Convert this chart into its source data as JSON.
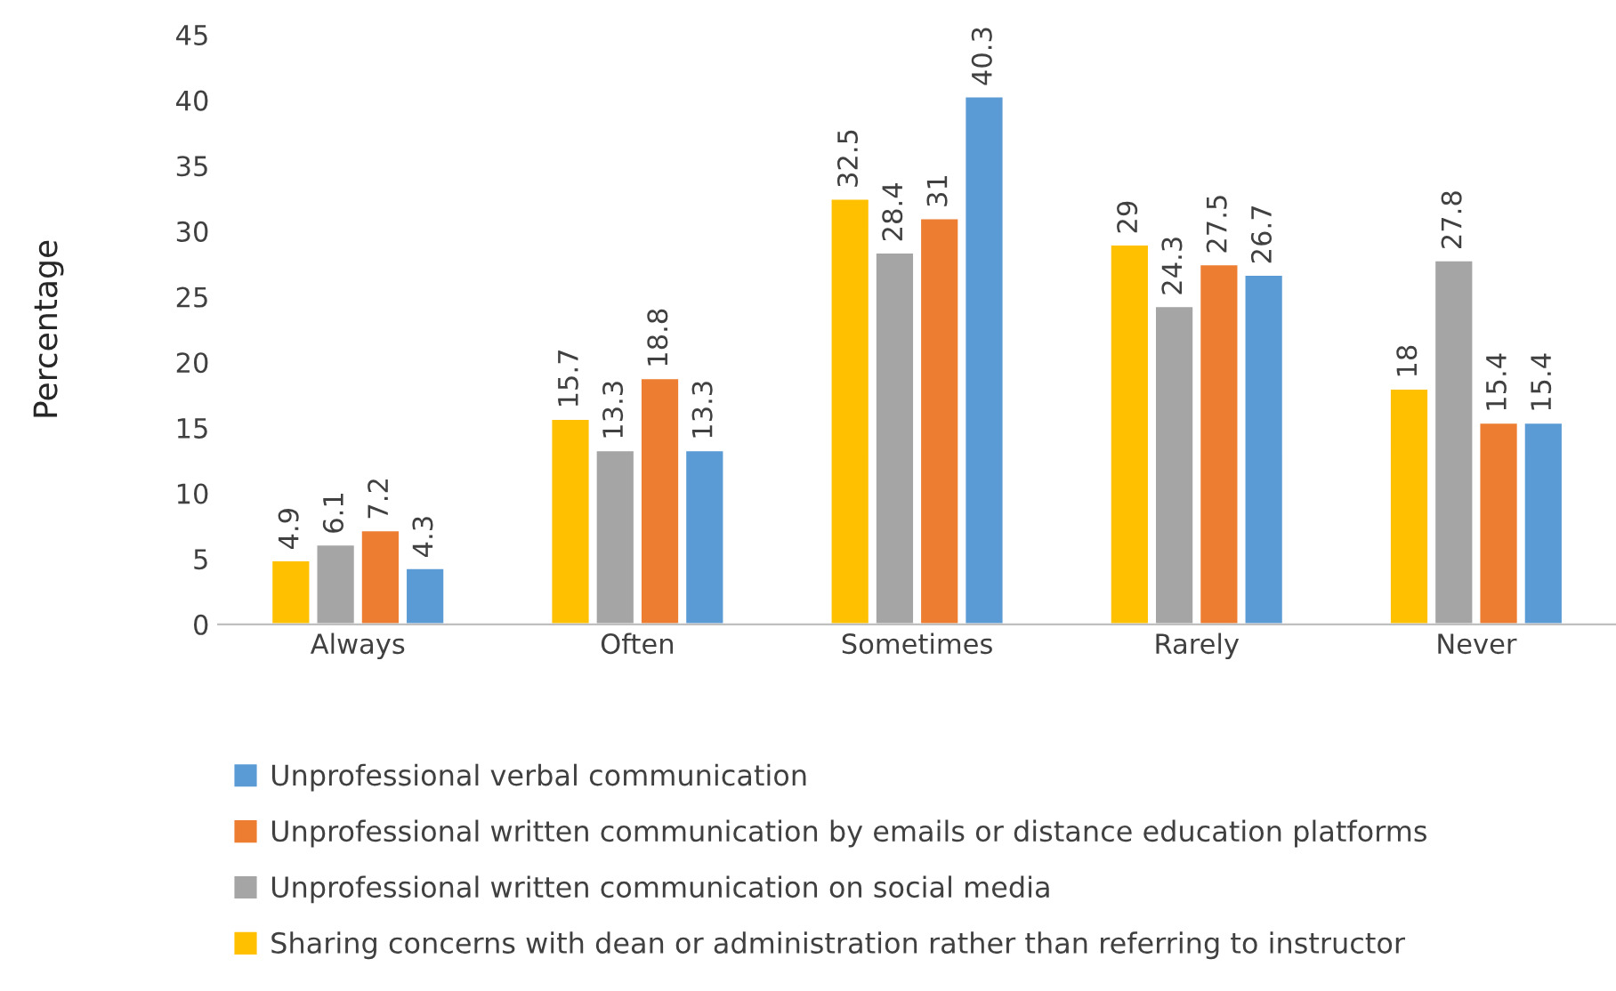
{
  "chart_data": {
    "type": "bar",
    "ylabel": "Percentage",
    "categories": [
      "Always",
      "Often",
      "Sometimes",
      "Rarely",
      "Never"
    ],
    "series": [
      {
        "name": "Sharing concerns with dean or administration rather than referring to instructor",
        "color": "#ffc000",
        "values": [
          4.9,
          15.7,
          32.5,
          29,
          18
        ]
      },
      {
        "name": "Unprofessional written communication on social media",
        "color": "#a5a5a5",
        "values": [
          6.1,
          13.3,
          28.4,
          24.3,
          27.8
        ]
      },
      {
        "name": "Unprofessional written communication by emails or distance education platforms",
        "color": "#ed7d31",
        "values": [
          7.2,
          18.8,
          31,
          27.5,
          15.4
        ]
      },
      {
        "name": "Unprofessional verbal communication",
        "color": "#5b9bd5",
        "values": [
          4.3,
          13.3,
          40.3,
          26.7,
          15.4
        ]
      }
    ],
    "ylim": [
      0,
      45
    ],
    "yticks": [
      0,
      5,
      10,
      15,
      20,
      25,
      30,
      35,
      40,
      45
    ],
    "grid": false,
    "legend": "bottom",
    "data_labels": true
  }
}
